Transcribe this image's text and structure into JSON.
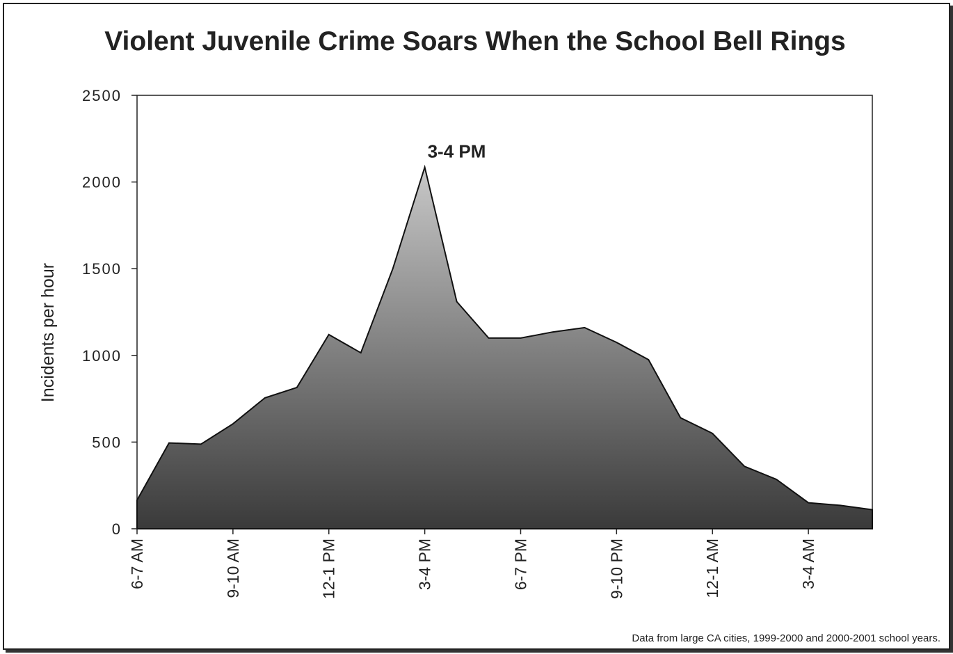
{
  "chart_data": {
    "type": "area",
    "title": "Violent Juvenile Crime Soars When the School Bell Rings",
    "ylabel": "Incidents per hour",
    "xlabel": "",
    "ylim": [
      0,
      2500
    ],
    "yticks": [
      0,
      500,
      1000,
      1500,
      2000,
      2500
    ],
    "xtick_labels": [
      "6-7 AM",
      "9-10 AM",
      "12-1 PM",
      "3-4 PM",
      "6-7 PM",
      "9-10 PM",
      "12-1 AM",
      "3-4 AM"
    ],
    "xtick_indices": [
      0,
      3,
      6,
      9,
      12,
      15,
      18,
      21
    ],
    "values": [
      165,
      495,
      488,
      605,
      755,
      815,
      1120,
      1015,
      1500,
      2085,
      1310,
      1100,
      1100,
      1135,
      1160,
      1075,
      975,
      640,
      550,
      360,
      285,
      150,
      135,
      110
    ],
    "annotation": {
      "text": "3-4 PM",
      "index": 9
    },
    "source_note": "Data from large CA cities, 1999-2000 and 2000-2001 school years.",
    "fill_top_color": "#c8c8c8",
    "fill_bottom_color": "#3a3a3a",
    "grid": false,
    "legend": "none"
  }
}
